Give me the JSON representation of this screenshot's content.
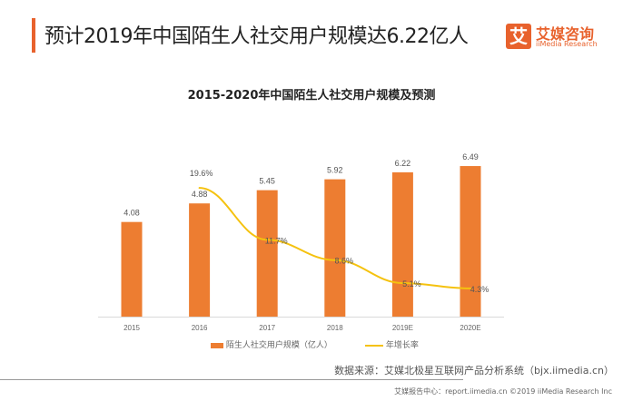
{
  "header": {
    "title": "预计2019年中国陌生人社交用户规模达6.22亿人",
    "logo_mark": "艾",
    "logo_cn": "艾媒咨询",
    "logo_en": "iiMedia Research"
  },
  "colors": {
    "accent": "#e8622d",
    "bar": "#ed7d31",
    "line": "#f5c20f"
  },
  "chart_data": {
    "type": "bar",
    "title": "2015-2020年中国陌生人社交用户规模及预测",
    "categories": [
      "2015",
      "2016",
      "2017",
      "2018",
      "2019E",
      "2020E"
    ],
    "series": [
      {
        "name": "陌生人社交用户规模（亿人）",
        "type": "bar",
        "values": [
          4.08,
          4.88,
          5.45,
          5.92,
          6.22,
          6.49
        ],
        "labels": [
          "4.08",
          "4.88",
          "5.45",
          "5.92",
          "6.22",
          "6.49"
        ]
      },
      {
        "name": "年增长率",
        "type": "line",
        "values": [
          null,
          19.6,
          11.7,
          8.6,
          5.1,
          4.3
        ],
        "labels": [
          "",
          "19.6%",
          "11.7%",
          "8.6%",
          "5.1%",
          "4.3%"
        ]
      }
    ],
    "ylim_bar": [
      0,
      7
    ],
    "ylim_line": [
      0,
      25
    ],
    "legend": "bottom",
    "grid": false
  },
  "source": "数据来源：艾媒北极星互联网产品分析系统（bjx.iimedia.cn）",
  "footer": "艾媒报告中心：report.iimedia.cn    ©2019  iiMedia Research Inc"
}
